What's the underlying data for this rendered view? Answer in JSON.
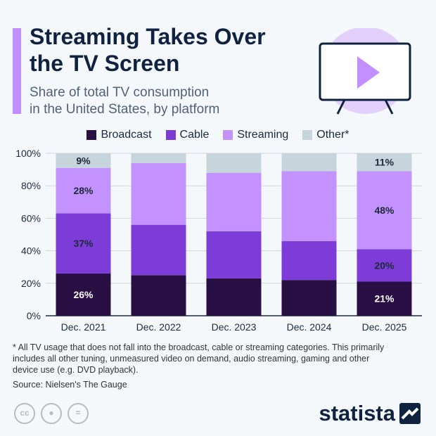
{
  "header": {
    "title_line1": "Streaming Takes Over",
    "title_line2": "the TV Screen",
    "subtitle_line1": "Share of total TV consumption",
    "subtitle_line2": "in the United States, by platform"
  },
  "footer": {
    "note_line1": "* All TV usage that does not fall into the broadcast, cable or streaming categories. This primarily",
    "note_line2": "includes all other tuning, unmeasured video on demand, audio streaming, gaming and other",
    "note_line3": "device use (e.g. DVD playback).",
    "source": "Source: Nielsen's The Gauge",
    "brand": "statista"
  },
  "chart_data": {
    "type": "bar",
    "stacked": true,
    "categories": [
      "Dec. 2021",
      "Dec. 2022",
      "Dec. 2023",
      "Dec. 2024",
      "Dec. 2025"
    ],
    "series": [
      {
        "name": "Broadcast",
        "color": "#2a0f45",
        "values": [
          26,
          25,
          23,
          22,
          21
        ]
      },
      {
        "name": "Cable",
        "color": "#7d3cd8",
        "values": [
          37,
          31,
          29,
          24,
          20
        ]
      },
      {
        "name": "Streaming",
        "color": "#c392ff",
        "values": [
          28,
          38,
          36,
          43,
          48
        ]
      },
      {
        "name": "Other*",
        "color": "#c6d4dc",
        "values": [
          9,
          6,
          12,
          11,
          11
        ]
      }
    ],
    "data_labels": [
      {
        "category": "Dec. 2021",
        "series": "Broadcast",
        "text": "26%"
      },
      {
        "category": "Dec. 2021",
        "series": "Cable",
        "text": "37%"
      },
      {
        "category": "Dec. 2021",
        "series": "Streaming",
        "text": "28%"
      },
      {
        "category": "Dec. 2021",
        "series": "Other*",
        "text": "9%"
      },
      {
        "category": "Dec. 2025",
        "series": "Broadcast",
        "text": "21%"
      },
      {
        "category": "Dec. 2025",
        "series": "Cable",
        "text": "20%"
      },
      {
        "category": "Dec. 2025",
        "series": "Streaming",
        "text": "48%"
      },
      {
        "category": "Dec. 2025",
        "series": "Other*",
        "text": "11%"
      }
    ],
    "yticks": [
      "0%",
      "20%",
      "40%",
      "60%",
      "80%",
      "100%"
    ],
    "ylim": [
      0,
      100
    ],
    "grid": true,
    "legend": "top"
  }
}
